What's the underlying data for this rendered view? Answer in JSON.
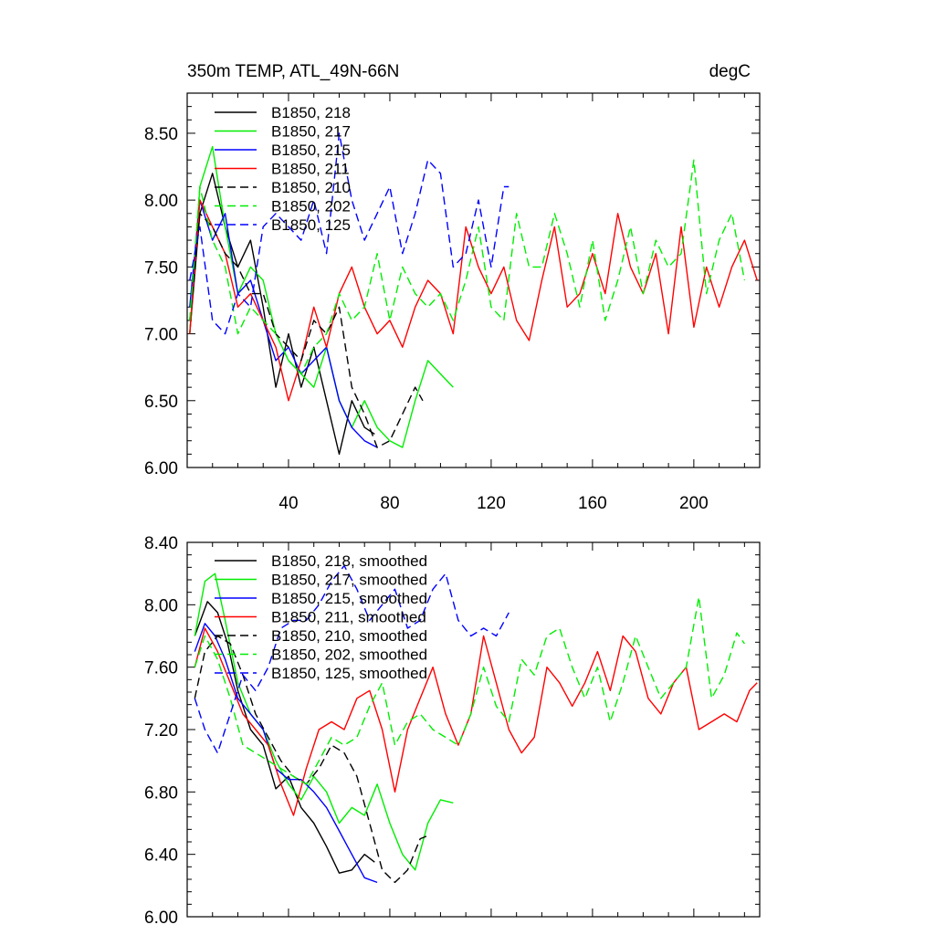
{
  "figure": {
    "title_left": "350m TEMP, ATL_49N-66N",
    "title_right": "degC"
  },
  "chart_data": [
    {
      "type": "line",
      "title": "350m TEMP, ATL_49N-66N",
      "units": "degC",
      "xlim": [
        0,
        226
      ],
      "ylim": [
        6.0,
        8.8
      ],
      "xticks": [
        40,
        80,
        120,
        160,
        200
      ],
      "yticks": [
        6.0,
        6.5,
        7.0,
        7.5,
        8.0,
        8.5
      ],
      "ytick_labels": [
        "6.00",
        "6.50",
        "7.00",
        "7.50",
        "8.00",
        "8.50"
      ],
      "xtick_labels": [
        "40",
        "80",
        "120",
        "160",
        "200"
      ],
      "series": [
        {
          "name": "B1850, 218",
          "color": "#000000",
          "dash": "solid",
          "x": [
            1,
            5,
            10,
            15,
            20,
            25,
            30,
            35,
            40,
            45,
            50,
            55,
            60,
            65,
            70,
            74
          ],
          "y": [
            7.0,
            7.9,
            8.2,
            7.8,
            7.5,
            7.7,
            7.2,
            6.6,
            7.0,
            6.6,
            6.9,
            6.5,
            6.1,
            6.5,
            6.3,
            6.25
          ]
        },
        {
          "name": "B1850, 217",
          "color": "#00ee00",
          "dash": "solid",
          "x": [
            1,
            5,
            10,
            15,
            20,
            25,
            30,
            35,
            40,
            45,
            50,
            55,
            60,
            65,
            70,
            75,
            80,
            85,
            90,
            95,
            100,
            105
          ],
          "y": [
            7.0,
            8.1,
            8.4,
            7.8,
            7.3,
            7.5,
            7.4,
            7.0,
            6.8,
            6.7,
            6.6,
            6.9,
            6.5,
            6.3,
            6.5,
            6.3,
            6.2,
            6.15,
            6.5,
            6.8,
            6.7,
            6.6
          ]
        },
        {
          "name": "B1850, 215",
          "color": "#0000ff",
          "dash": "solid",
          "x": [
            1,
            5,
            10,
            15,
            20,
            25,
            30,
            35,
            40,
            45,
            50,
            55,
            60,
            65,
            70,
            75
          ],
          "y": [
            7.2,
            8.0,
            7.7,
            7.9,
            7.3,
            7.4,
            7.1,
            6.8,
            6.9,
            6.7,
            6.8,
            6.9,
            6.5,
            6.3,
            6.2,
            6.15
          ]
        },
        {
          "name": "B1850, 211",
          "color": "#ff0000",
          "dash": "solid",
          "x": [
            1,
            5,
            10,
            15,
            20,
            25,
            30,
            35,
            40,
            45,
            50,
            55,
            60,
            65,
            70,
            75,
            80,
            85,
            90,
            95,
            100,
            105,
            110,
            115,
            120,
            125,
            130,
            135,
            140,
            145,
            150,
            155,
            160,
            165,
            170,
            175,
            180,
            185,
            190,
            195,
            200,
            205,
            210,
            215,
            220,
            225
          ],
          "y": [
            7.0,
            8.0,
            7.8,
            7.6,
            7.2,
            7.3,
            7.1,
            6.9,
            6.5,
            6.8,
            7.2,
            6.9,
            7.3,
            7.5,
            7.2,
            7.0,
            7.1,
            6.9,
            7.2,
            7.4,
            7.3,
            7.0,
            7.8,
            7.5,
            7.3,
            7.5,
            7.1,
            6.95,
            7.4,
            7.8,
            7.2,
            7.3,
            7.6,
            7.3,
            7.9,
            7.5,
            7.3,
            7.6,
            7.0,
            7.8,
            7.05,
            7.5,
            7.2,
            7.5,
            7.7,
            7.4
          ]
        },
        {
          "name": "B1850, 210",
          "color": "#000000",
          "dash": "dash",
          "x": [
            1,
            5,
            10,
            15,
            20,
            25,
            30,
            35,
            40,
            45,
            50,
            55,
            60,
            65,
            70,
            75,
            80,
            85,
            90,
            93
          ],
          "y": [
            7.1,
            7.9,
            7.8,
            7.6,
            7.5,
            7.3,
            7.3,
            7.0,
            6.9,
            6.8,
            7.1,
            7.0,
            7.2,
            6.6,
            6.4,
            6.15,
            6.2,
            6.4,
            6.6,
            6.5
          ]
        },
        {
          "name": "B1850, 202",
          "color": "#00ee00",
          "dash": "dash",
          "x": [
            1,
            5,
            10,
            15,
            20,
            25,
            30,
            35,
            40,
            45,
            50,
            55,
            60,
            65,
            70,
            75,
            80,
            85,
            90,
            95,
            100,
            105,
            110,
            115,
            120,
            125,
            130,
            135,
            140,
            145,
            150,
            155,
            160,
            165,
            170,
            175,
            180,
            185,
            190,
            195,
            200,
            205,
            210,
            215,
            220
          ],
          "y": [
            7.1,
            8.1,
            7.7,
            7.5,
            7.0,
            7.2,
            7.1,
            7.0,
            6.8,
            6.7,
            6.9,
            7.0,
            7.3,
            7.1,
            7.2,
            7.6,
            7.1,
            7.5,
            7.3,
            7.2,
            7.3,
            7.1,
            7.4,
            7.8,
            7.2,
            7.1,
            7.9,
            7.5,
            7.5,
            7.9,
            7.6,
            7.2,
            7.7,
            7.1,
            7.4,
            7.8,
            7.3,
            7.7,
            7.5,
            7.6,
            8.3,
            7.3,
            7.7,
            7.9,
            7.4
          ]
        },
        {
          "name": "B1850, 125",
          "color": "#0000ff",
          "dash": "dash",
          "x": [
            1,
            5,
            10,
            15,
            20,
            25,
            30,
            35,
            40,
            45,
            50,
            55,
            60,
            65,
            70,
            75,
            80,
            85,
            90,
            95,
            100,
            105,
            110,
            115,
            120,
            125,
            127
          ],
          "y": [
            7.4,
            7.8,
            7.1,
            7.0,
            7.3,
            7.2,
            7.8,
            7.9,
            7.8,
            7.7,
            8.0,
            7.6,
            8.5,
            8.0,
            7.7,
            7.9,
            8.1,
            7.6,
            7.9,
            8.3,
            8.2,
            7.5,
            7.6,
            8.0,
            7.5,
            8.1,
            8.1
          ]
        }
      ]
    },
    {
      "type": "line",
      "title": "",
      "xlim": [
        0,
        226
      ],
      "ylim": [
        6.0,
        8.4
      ],
      "xticks": [
        40,
        80,
        120,
        160,
        200
      ],
      "yticks": [
        6.0,
        6.4,
        6.8,
        7.2,
        7.6,
        8.0,
        8.4
      ],
      "ytick_labels": [
        "6.00",
        "6.40",
        "6.80",
        "7.20",
        "7.60",
        "8.00",
        "8.40"
      ],
      "xtick_labels": [],
      "series": [
        {
          "name": "B1850, 218, smoothed",
          "color": "#000000",
          "dash": "solid",
          "x": [
            3,
            8,
            12,
            16,
            20,
            25,
            30,
            35,
            40,
            45,
            50,
            55,
            60,
            65,
            70,
            74
          ],
          "y": [
            7.8,
            8.02,
            7.95,
            7.75,
            7.45,
            7.2,
            7.1,
            6.82,
            6.9,
            6.7,
            6.6,
            6.45,
            6.28,
            6.3,
            6.4,
            6.35
          ]
        },
        {
          "name": "B1850, 217, smoothed",
          "color": "#00ee00",
          "dash": "solid",
          "x": [
            3,
            7,
            11,
            15,
            20,
            25,
            30,
            35,
            40,
            45,
            50,
            55,
            60,
            65,
            70,
            75,
            80,
            85,
            90,
            95,
            100,
            105
          ],
          "y": [
            7.8,
            8.15,
            8.2,
            7.9,
            7.5,
            7.3,
            7.2,
            7.0,
            6.85,
            6.75,
            6.9,
            6.8,
            6.6,
            6.7,
            6.65,
            6.85,
            6.6,
            6.4,
            6.3,
            6.6,
            6.75,
            6.73
          ]
        },
        {
          "name": "B1850, 215, smoothed",
          "color": "#0000ff",
          "dash": "solid",
          "x": [
            3,
            7,
            11,
            15,
            20,
            25,
            30,
            35,
            40,
            45,
            50,
            55,
            60,
            65,
            70,
            75
          ],
          "y": [
            7.7,
            7.88,
            7.8,
            7.65,
            7.4,
            7.3,
            7.2,
            6.95,
            6.88,
            6.88,
            6.8,
            6.7,
            6.55,
            6.4,
            6.25,
            6.22
          ]
        },
        {
          "name": "B1850, 211, smoothed",
          "color": "#ff0000",
          "dash": "solid",
          "x": [
            3,
            7,
            12,
            17,
            22,
            27,
            32,
            37,
            42,
            47,
            52,
            57,
            62,
            67,
            72,
            77,
            82,
            87,
            92,
            97,
            102,
            107,
            112,
            117,
            122,
            127,
            132,
            137,
            142,
            147,
            152,
            157,
            162,
            167,
            172,
            177,
            182,
            187,
            192,
            197,
            202,
            207,
            212,
            217,
            222,
            225
          ],
          "y": [
            7.6,
            7.85,
            7.7,
            7.5,
            7.3,
            7.2,
            7.1,
            6.85,
            6.65,
            6.95,
            7.2,
            7.25,
            7.2,
            7.4,
            7.45,
            7.2,
            6.8,
            7.2,
            7.4,
            7.6,
            7.3,
            7.1,
            7.3,
            7.8,
            7.5,
            7.2,
            7.05,
            7.15,
            7.6,
            7.5,
            7.35,
            7.5,
            7.7,
            7.45,
            7.8,
            7.7,
            7.4,
            7.3,
            7.5,
            7.6,
            7.2,
            7.25,
            7.3,
            7.25,
            7.45,
            7.5
          ]
        },
        {
          "name": "B1850, 210, smoothed",
          "color": "#000000",
          "dash": "dash",
          "x": [
            3,
            7,
            12,
            17,
            22,
            27,
            32,
            37,
            42,
            47,
            52,
            57,
            62,
            67,
            72,
            77,
            82,
            87,
            92,
            95
          ],
          "y": [
            7.4,
            7.7,
            7.8,
            7.75,
            7.55,
            7.3,
            7.15,
            7.0,
            6.9,
            6.85,
            6.95,
            7.1,
            7.05,
            6.9,
            6.6,
            6.3,
            6.22,
            6.3,
            6.5,
            6.52
          ]
        },
        {
          "name": "B1850, 202, smoothed",
          "color": "#00ee00",
          "dash": "dash",
          "x": [
            3,
            7,
            12,
            17,
            22,
            27,
            32,
            37,
            42,
            47,
            52,
            57,
            62,
            67,
            72,
            77,
            82,
            87,
            92,
            97,
            102,
            107,
            112,
            117,
            122,
            127,
            132,
            137,
            142,
            147,
            152,
            157,
            162,
            167,
            172,
            177,
            182,
            187,
            192,
            197,
            202,
            207,
            212,
            217,
            220
          ],
          "y": [
            7.6,
            7.8,
            7.65,
            7.4,
            7.1,
            7.05,
            7.0,
            6.95,
            6.9,
            6.85,
            7.0,
            7.15,
            7.1,
            7.15,
            7.35,
            7.5,
            7.1,
            7.25,
            7.3,
            7.2,
            7.15,
            7.1,
            7.3,
            7.6,
            7.35,
            7.25,
            7.65,
            7.55,
            7.8,
            7.85,
            7.6,
            7.4,
            7.6,
            7.25,
            7.5,
            7.8,
            7.6,
            7.4,
            7.5,
            7.6,
            8.05,
            7.4,
            7.55,
            7.82,
            7.75
          ]
        },
        {
          "name": "B1850, 125, smoothed",
          "color": "#0000ff",
          "dash": "dash",
          "x": [
            3,
            7,
            12,
            17,
            22,
            27,
            32,
            37,
            42,
            47,
            52,
            57,
            62,
            67,
            72,
            77,
            82,
            87,
            92,
            97,
            102,
            107,
            112,
            117,
            122,
            127
          ],
          "y": [
            7.4,
            7.2,
            7.05,
            7.3,
            7.55,
            7.45,
            7.6,
            7.85,
            7.9,
            7.9,
            8.0,
            8.15,
            8.25,
            8.1,
            7.9,
            8.0,
            8.1,
            7.85,
            7.9,
            8.1,
            8.2,
            7.9,
            7.8,
            7.85,
            7.8,
            7.95
          ]
        }
      ]
    }
  ]
}
